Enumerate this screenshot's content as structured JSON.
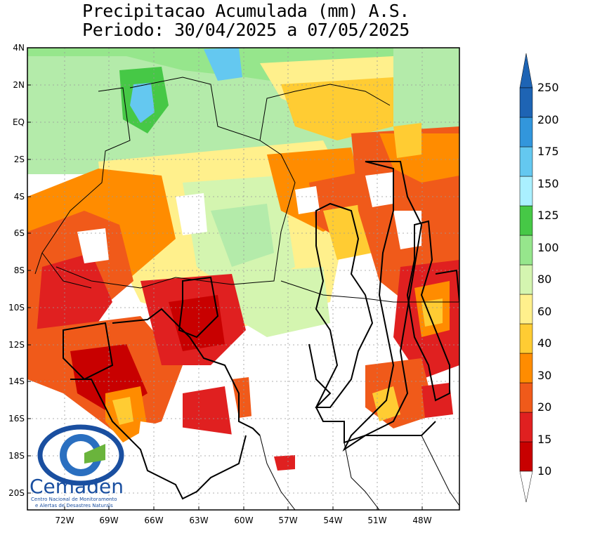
{
  "title": {
    "line1": "Precipitacao Acumulada (mm) A.S.",
    "line2": "Periodo: 30/04/2025 a 07/05/2025"
  },
  "lat_labels": [
    "4N",
    "2N",
    "EQ",
    "2S",
    "4S",
    "6S",
    "8S",
    "10S",
    "12S",
    "14S",
    "16S",
    "18S",
    "20S"
  ],
  "lon_labels": [
    "72W",
    "69W",
    "66W",
    "63W",
    "60W",
    "57W",
    "54W",
    "51W",
    "48W"
  ],
  "colorbar": {
    "labels": [
      "10",
      "15",
      "20",
      "30",
      "40",
      "60",
      "80",
      "100",
      "125",
      "150",
      "175",
      "200",
      "250"
    ],
    "colors": [
      "#c80000",
      "#e02020",
      "#f05a1a",
      "#ff8c00",
      "#ffcc33",
      "#fff08c",
      "#d4f5b0",
      "#96e68c",
      "#46c846",
      "#aaf0ff",
      "#64c8f0",
      "#3296dc",
      "#1e64b4"
    ]
  },
  "logo": {
    "name": "Cemaden",
    "subtitle_line1": "Centro Nacional de Monitoramento",
    "subtitle_line2": "e Alertas de Desastres Naturais"
  }
}
